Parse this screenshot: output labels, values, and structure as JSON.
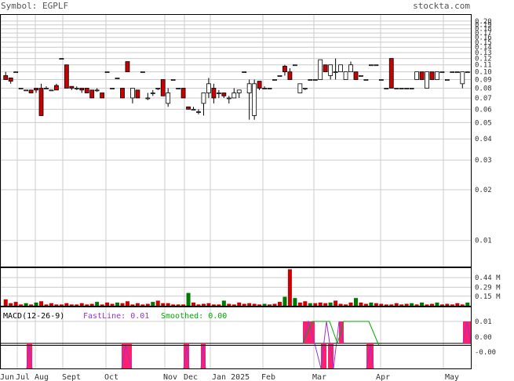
{
  "header": {
    "symbol_label": "Symbol: EGPLF",
    "site": "stockta.com"
  },
  "macd_legend": {
    "name": "MACD(12-26-9)",
    "fast_label": "FastLine: 0.01",
    "smooth_label": "Smoothed: 0.00"
  },
  "colors": {
    "up": "#ffffff",
    "down": "#cc0000",
    "vol_down": "#cc0000",
    "vol_up": "#007700",
    "hist": "#ff1f6f",
    "fast": "#9933cc",
    "smooth": "#00aa00",
    "grid": "#cccccc"
  },
  "chart_data": [
    {
      "type": "candlestick",
      "title": "Price",
      "yscale": "log",
      "ylim": [
        0.007,
        0.22
      ],
      "yticks": [
        "0.20",
        "0.19",
        "0.18",
        "0.17",
        "0.16",
        "0.15",
        "0.14",
        "0.13",
        "0.12",
        "0.11",
        "0.10",
        "0.09",
        "0.08",
        "0.07",
        "0.06",
        "0.05",
        "0.04",
        "0.03",
        "0.02",
        "0.01"
      ],
      "xticks": [
        "Jun",
        "Jul",
        "Aug",
        "Sept",
        "Oct",
        "Nov",
        "Dec",
        "Jan 2025",
        "Feb",
        "Mar",
        "Apr",
        "May"
      ],
      "candles": [
        [
          0.095,
          0.09,
          0.1,
          0.09
        ],
        [
          0.092,
          0.088,
          0.092,
          0.085
        ],
        [
          0.1,
          0.1,
          0.1,
          0.1
        ],
        [
          0.08,
          0.08,
          0.08,
          0.08
        ],
        [
          0.078,
          0.078,
          0.078,
          0.078
        ],
        [
          0.078,
          0.075,
          0.078,
          0.075
        ],
        [
          0.08,
          0.078,
          0.08,
          0.075
        ],
        [
          0.08,
          0.055,
          0.085,
          0.055
        ],
        [
          0.08,
          0.08,
          0.082,
          0.08
        ],
        [
          0.078,
          0.078,
          0.078,
          0.078
        ],
        [
          0.083,
          0.078,
          0.085,
          0.078
        ],
        [
          0.12,
          0.12,
          0.12,
          0.12
        ],
        [
          0.11,
          0.08,
          0.11,
          0.08
        ],
        [
          0.082,
          0.08,
          0.082,
          0.078
        ],
        [
          0.08,
          0.08,
          0.082,
          0.078
        ],
        [
          0.08,
          0.078,
          0.08,
          0.075
        ],
        [
          0.08,
          0.075,
          0.08,
          0.075
        ],
        [
          0.078,
          0.07,
          0.078,
          0.07
        ],
        [
          0.078,
          0.078,
          0.08,
          0.076
        ],
        [
          0.075,
          0.07,
          0.075,
          0.07
        ],
        [
          0.1,
          0.1,
          0.1,
          0.1
        ],
        [
          0.08,
          0.08,
          0.08,
          0.08
        ],
        [
          0.092,
          0.092,
          0.092,
          0.092
        ],
        [
          0.08,
          0.07,
          0.08,
          0.07
        ],
        [
          0.115,
          0.1,
          0.115,
          0.1
        ],
        [
          0.07,
          0.08,
          0.08,
          0.065
        ],
        [
          0.078,
          0.07,
          0.078,
          0.07
        ],
        [
          0.1,
          0.1,
          0.1,
          0.1
        ],
        [
          0.07,
          0.07,
          0.075,
          0.068
        ],
        [
          0.075,
          0.075,
          0.078,
          0.072
        ],
        [
          0.08,
          0.08,
          0.08,
          0.078
        ],
        [
          0.09,
          0.072,
          0.09,
          0.072
        ],
        [
          0.065,
          0.075,
          0.08,
          0.062
        ],
        [
          0.09,
          0.09,
          0.09,
          0.09
        ],
        [
          0.08,
          0.08,
          0.08,
          0.08
        ],
        [
          0.08,
          0.07,
          0.08,
          0.07
        ],
        [
          0.062,
          0.06,
          0.062,
          0.06
        ],
        [
          0.06,
          0.06,
          0.062,
          0.06
        ],
        [
          0.058,
          0.058,
          0.06,
          0.056
        ],
        [
          0.065,
          0.075,
          0.075,
          0.055
        ],
        [
          0.075,
          0.085,
          0.092,
          0.07
        ],
        [
          0.08,
          0.07,
          0.085,
          0.065
        ],
        [
          0.075,
          0.075,
          0.078,
          0.07
        ],
        [
          0.075,
          0.072,
          0.075,
          0.07
        ],
        [
          0.07,
          0.07,
          0.072,
          0.065
        ],
        [
          0.07,
          0.075,
          0.08,
          0.07
        ],
        [
          0.075,
          0.078,
          0.078,
          0.07
        ],
        [
          0.1,
          0.1,
          0.1,
          0.1
        ],
        [
          0.075,
          0.085,
          0.09,
          0.052
        ],
        [
          0.055,
          0.085,
          0.09,
          0.052
        ],
        [
          0.088,
          0.08,
          0.088,
          0.078
        ],
        [
          0.08,
          0.08,
          0.082,
          0.08
        ],
        [
          0.08,
          0.08,
          0.08,
          0.08
        ],
        [
          0.09,
          0.09,
          0.09,
          0.09
        ],
        [
          0.095,
          0.095,
          0.095,
          0.095
        ],
        [
          0.108,
          0.1,
          0.11,
          0.095
        ],
        [
          0.1,
          0.09,
          0.105,
          0.09
        ],
        [
          0.11,
          0.11,
          0.11,
          0.11
        ],
        [
          0.075,
          0.085,
          0.085,
          0.075
        ],
        [
          0.08,
          0.08,
          0.08,
          0.078
        ],
        [
          0.09,
          0.09,
          0.09,
          0.09
        ],
        [
          0.09,
          0.09,
          0.09,
          0.09
        ],
        [
          0.09,
          0.118,
          0.118,
          0.09
        ],
        [
          0.11,
          0.1,
          0.11,
          0.1
        ],
        [
          0.095,
          0.11,
          0.11,
          0.09
        ],
        [
          0.1,
          0.1,
          0.12,
          0.09
        ],
        [
          0.1,
          0.11,
          0.11,
          0.1
        ],
        [
          0.09,
          0.1,
          0.1,
          0.09
        ],
        [
          0.1,
          0.11,
          0.115,
          0.1
        ],
        [
          0.1,
          0.09,
          0.1,
          0.09
        ],
        [
          0.095,
          0.095,
          0.095,
          0.095
        ],
        [
          0.09,
          0.09,
          0.09,
          0.09
        ],
        [
          0.11,
          0.11,
          0.11,
          0.11
        ],
        [
          0.11,
          0.11,
          0.11,
          0.11
        ],
        [
          0.09,
          0.09,
          0.09,
          0.09
        ],
        [
          0.08,
          0.08,
          0.08,
          0.08
        ],
        [
          0.12,
          0.08,
          0.12,
          0.08
        ],
        [
          0.08,
          0.08,
          0.08,
          0.08
        ],
        [
          0.08,
          0.08,
          0.08,
          0.08
        ],
        [
          0.08,
          0.08,
          0.08,
          0.08
        ],
        [
          0.08,
          0.08,
          0.08,
          0.08
        ],
        [
          0.09,
          0.1,
          0.1,
          0.09
        ],
        [
          0.1,
          0.09,
          0.1,
          0.09
        ],
        [
          0.08,
          0.1,
          0.1,
          0.08
        ],
        [
          0.1,
          0.09,
          0.1,
          0.09
        ],
        [
          0.09,
          0.1,
          0.1,
          0.09
        ],
        [
          0.1,
          0.1,
          0.1,
          0.1
        ],
        [
          0.09,
          0.09,
          0.09,
          0.09
        ],
        [
          0.1,
          0.1,
          0.1,
          0.1
        ],
        [
          0.1,
          0.1,
          0.1,
          0.1
        ],
        [
          0.085,
          0.1,
          0.1,
          0.08
        ],
        [
          0.1,
          0.1,
          0.1,
          0.1
        ]
      ]
    },
    {
      "type": "bar",
      "title": "Volume",
      "yticks": [
        "0.44 M",
        "0.29 M",
        "0.15 M"
      ],
      "ylim": [
        0,
        0.6
      ],
      "values": [
        0.1,
        0.04,
        0.06,
        0.02,
        0.04,
        0.02,
        0.05,
        0.07,
        0.02,
        0.04,
        0.02,
        0.02,
        0.04,
        0.02,
        0.02,
        0.04,
        0.02,
        0.03,
        0.06,
        0.02,
        0.05,
        0.03,
        0.05,
        0.04,
        0.07,
        0.02,
        0.04,
        0.02,
        0.03,
        0.06,
        0.08,
        0.04,
        0.04,
        0.02,
        0.02,
        0.02,
        0.2,
        0.05,
        0.02,
        0.03,
        0.04,
        0.02,
        0.02,
        0.08,
        0.03,
        0.02,
        0.05,
        0.03,
        0.04,
        0.03,
        0.02,
        0.03,
        0.02,
        0.03,
        0.06,
        0.14,
        0.57,
        0.12,
        0.05,
        0.07,
        0.04,
        0.04,
        0.05,
        0.04,
        0.05,
        0.08,
        0.03,
        0.02,
        0.05,
        0.12,
        0.05,
        0.03,
        0.05,
        0.04,
        0.03,
        0.02,
        0.02,
        0.04,
        0.02,
        0.03,
        0.04,
        0.02,
        0.05,
        0.02,
        0.03,
        0.05,
        0.02,
        0.03,
        0.02,
        0.04,
        0.02,
        0.05
      ],
      "up": [
        0,
        0,
        0,
        0,
        1,
        0,
        1,
        0,
        0,
        0,
        0,
        0,
        0,
        0,
        0,
        0,
        0,
        0,
        1,
        0,
        0,
        0,
        1,
        0,
        0,
        0,
        0,
        0,
        0,
        1,
        0,
        0,
        0,
        0,
        0,
        0,
        1,
        0,
        0,
        0,
        0,
        0,
        0,
        1,
        0,
        0,
        0,
        0,
        0,
        0,
        0,
        1,
        0,
        0,
        0,
        1,
        0,
        1,
        0,
        0,
        1,
        0,
        0,
        0,
        1,
        0,
        0,
        0,
        0,
        1,
        0,
        0,
        1,
        0,
        0,
        0,
        0,
        0,
        0,
        0,
        1,
        0,
        1,
        0,
        0,
        1,
        0,
        0,
        0,
        0,
        0,
        1
      ]
    },
    {
      "type": "line",
      "title": "MACD(12-26-9)",
      "yticks": [
        "0.01",
        "0.00",
        "-0.00"
      ]
    }
  ]
}
